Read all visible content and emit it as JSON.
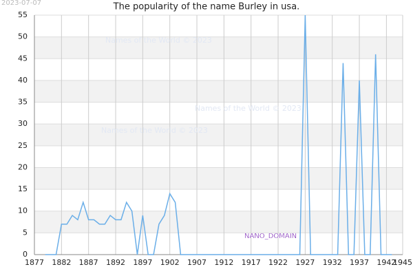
{
  "chart_data": {
    "type": "line",
    "title": "The popularity of the name Burley in usa.",
    "stamp": "2023-07-07",
    "annotations": [
      "Names of the World © 2023",
      "Names of the World © 2023",
      "Names of the World © 2023",
      "NANO_DOMAIN"
    ],
    "x": [
      1879,
      1880,
      1881,
      1882,
      1883,
      1884,
      1885,
      1886,
      1887,
      1888,
      1889,
      1890,
      1891,
      1892,
      1893,
      1894,
      1895,
      1896,
      1897,
      1898,
      1899,
      1900,
      1901,
      1902,
      1903,
      1904,
      1905,
      1906,
      1907,
      1908,
      1909,
      1910,
      1911,
      1912,
      1913,
      1914,
      1915,
      1916,
      1917,
      1918,
      1919,
      1920,
      1921,
      1922,
      1923,
      1924,
      1925,
      1926,
      1927,
      1928,
      1929,
      1930,
      1931,
      1932,
      1933,
      1934,
      1935,
      1936,
      1937,
      1938,
      1939,
      1940,
      1941,
      1942,
      1943
    ],
    "series": [
      {
        "color": "#6aaee8",
        "values": [
          0,
          0,
          0,
          7,
          7,
          9,
          8,
          12,
          8,
          8,
          7,
          7,
          9,
          8,
          8,
          12,
          10,
          0,
          9,
          0,
          0,
          7,
          9,
          14,
          12,
          0,
          0,
          0,
          0,
          0,
          0,
          0,
          0,
          0,
          0,
          0,
          0,
          0,
          0,
          0,
          0,
          0,
          0,
          0,
          0,
          0,
          0,
          0,
          55,
          0,
          0,
          0,
          0,
          0,
          0,
          44,
          0,
          0,
          40,
          0,
          0,
          46,
          0,
          0,
          0
        ]
      }
    ],
    "xlim": [
      1877,
      1945
    ],
    "xticks": [
      1877,
      1882,
      1887,
      1892,
      1897,
      1902,
      1907,
      1912,
      1917,
      1922,
      1927,
      1932,
      1937,
      1942,
      1945
    ],
    "ylim": [
      0,
      55
    ],
    "yticks": [
      0,
      5,
      10,
      15,
      20,
      25,
      30,
      35,
      40,
      45,
      50,
      55
    ],
    "grid": true
  }
}
